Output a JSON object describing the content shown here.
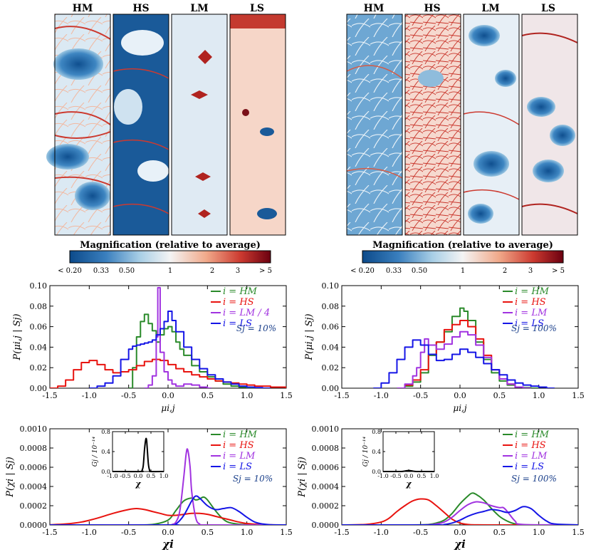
{
  "colors": {
    "HM": "#2a8a2a",
    "HS": "#e8130f",
    "LM": "#a133e0",
    "LS": "#1515e6",
    "annot": "#1a3f8a",
    "black": "#000000"
  },
  "maps": {
    "left": {
      "panels": [
        "HM",
        "HS",
        "LM",
        "LS"
      ],
      "colorbar_title": "Magnification (relative to average)",
      "colorbar_ticks": [
        "< 0.20",
        "0.33",
        "0.50",
        "1",
        "2",
        "3",
        "> 5"
      ]
    },
    "right": {
      "panels": [
        "HM",
        "HS",
        "LM",
        "LS"
      ],
      "colorbar_title": "Magnification (relative to average)",
      "colorbar_ticks": [
        "< 0.20",
        "0.33",
        "0.50",
        "1",
        "2",
        "3",
        "> 5"
      ]
    }
  },
  "chart_data": [
    {
      "id": "mu-left",
      "type": "line",
      "step": true,
      "ylabel": "P(μi,j | Sj)",
      "xlabel": "μi,j",
      "xlim": [
        -1.5,
        1.5
      ],
      "ylim": [
        0,
        0.1
      ],
      "xticks": [
        "-1.5",
        "-1.0",
        "-0.5",
        "0.0",
        "0.5",
        "1.0",
        "1.5"
      ],
      "yticks": [
        "0.00",
        "0.02",
        "0.04",
        "0.06",
        "0.08",
        "0.10"
      ],
      "ytickvals": [
        0,
        0.02,
        0.04,
        0.06,
        0.08,
        0.1
      ],
      "annotation": "Sj = 10%",
      "series": [
        {
          "name": "i = HM",
          "key": "HM",
          "x": [
            -0.5,
            -0.45,
            -0.4,
            -0.35,
            -0.3,
            -0.25,
            -0.2,
            -0.15,
            -0.1,
            -0.05,
            0.0,
            0.05,
            0.1,
            0.15,
            0.2,
            0.3,
            0.4,
            0.5,
            0.6,
            0.7,
            0.8,
            0.9,
            1.0,
            1.1
          ],
          "y": [
            0.0,
            0.02,
            0.05,
            0.065,
            0.072,
            0.063,
            0.056,
            0.045,
            0.052,
            0.058,
            0.06,
            0.055,
            0.045,
            0.038,
            0.032,
            0.022,
            0.016,
            0.011,
            0.007,
            0.004,
            0.002,
            0.001,
            0.0005,
            0.0
          ]
        },
        {
          "name": "i = HS",
          "key": "HS",
          "x": [
            -1.5,
            -1.4,
            -1.3,
            -1.2,
            -1.1,
            -1.0,
            -0.9,
            -0.8,
            -0.7,
            -0.6,
            -0.5,
            -0.4,
            -0.3,
            -0.2,
            -0.1,
            0.0,
            0.1,
            0.2,
            0.3,
            0.4,
            0.5,
            0.6,
            0.7,
            0.8,
            0.9,
            1.0,
            1.1,
            1.2,
            1.3,
            1.4,
            1.5
          ],
          "y": [
            0.0,
            0.002,
            0.008,
            0.018,
            0.025,
            0.027,
            0.023,
            0.018,
            0.015,
            0.016,
            0.018,
            0.022,
            0.026,
            0.028,
            0.027,
            0.023,
            0.019,
            0.016,
            0.013,
            0.011,
            0.009,
            0.007,
            0.006,
            0.005,
            0.004,
            0.003,
            0.002,
            0.002,
            0.001,
            0.001,
            0.0
          ]
        },
        {
          "name": "i = LM / 4",
          "key": "LM",
          "x": [
            -0.3,
            -0.25,
            -0.2,
            -0.15,
            -0.13,
            -0.1,
            -0.05,
            0.0,
            0.05,
            0.1,
            0.2,
            0.3,
            0.4,
            0.5
          ],
          "y": [
            0.0,
            0.003,
            0.012,
            0.05,
            0.098,
            0.035,
            0.016,
            0.008,
            0.004,
            0.002,
            0.004,
            0.003,
            0.001,
            0.0
          ]
        },
        {
          "name": "i = LS",
          "key": "LS",
          "x": [
            -1.0,
            -0.9,
            -0.8,
            -0.7,
            -0.6,
            -0.5,
            -0.45,
            -0.4,
            -0.35,
            -0.3,
            -0.25,
            -0.2,
            -0.15,
            -0.1,
            -0.05,
            0.0,
            0.05,
            0.1,
            0.2,
            0.3,
            0.4,
            0.5,
            0.6,
            0.7,
            0.8,
            0.9,
            1.0,
            1.1,
            1.2
          ],
          "y": [
            0.0,
            0.002,
            0.005,
            0.012,
            0.028,
            0.038,
            0.041,
            0.042,
            0.043,
            0.044,
            0.045,
            0.047,
            0.052,
            0.058,
            0.065,
            0.075,
            0.066,
            0.055,
            0.04,
            0.028,
            0.019,
            0.013,
            0.009,
            0.006,
            0.004,
            0.002,
            0.001,
            0.0005,
            0.0
          ]
        }
      ]
    },
    {
      "id": "mu-right",
      "type": "line",
      "step": true,
      "ylabel": "P(μi,j | Sj)",
      "xlabel": "μi,j",
      "xlim": [
        -1.5,
        1.5
      ],
      "ylim": [
        0,
        0.1
      ],
      "xticks": [
        "-1.5",
        "-1.0",
        "-0.5",
        "0.0",
        "0.5",
        "1.0",
        "1.5"
      ],
      "yticks": [
        "0.00",
        "0.02",
        "0.04",
        "0.06",
        "0.08",
        "0.10"
      ],
      "ytickvals": [
        0,
        0.02,
        0.04,
        0.06,
        0.08,
        0.1
      ],
      "annotation": "Sj = 100%",
      "series": [
        {
          "name": "i = HM",
          "key": "HM",
          "x": [
            -0.8,
            -0.7,
            -0.6,
            -0.5,
            -0.4,
            -0.3,
            -0.2,
            -0.1,
            0.0,
            0.05,
            0.1,
            0.2,
            0.3,
            0.4,
            0.5,
            0.6,
            0.7,
            0.8,
            0.9
          ],
          "y": [
            0.0,
            0.002,
            0.006,
            0.015,
            0.032,
            0.045,
            0.055,
            0.07,
            0.078,
            0.075,
            0.066,
            0.045,
            0.028,
            0.015,
            0.007,
            0.003,
            0.001,
            0.0005,
            0.0
          ]
        },
        {
          "name": "i = HS",
          "key": "HS",
          "x": [
            -0.8,
            -0.7,
            -0.6,
            -0.5,
            -0.4,
            -0.3,
            -0.2,
            -0.1,
            0.0,
            0.1,
            0.2,
            0.3,
            0.4,
            0.5,
            0.6,
            0.7,
            0.8
          ],
          "y": [
            0.0,
            0.003,
            0.008,
            0.018,
            0.033,
            0.045,
            0.057,
            0.062,
            0.066,
            0.06,
            0.048,
            0.032,
            0.018,
            0.009,
            0.004,
            0.001,
            0.0
          ]
        },
        {
          "name": "i = LM",
          "key": "LM",
          "x": [
            -0.8,
            -0.7,
            -0.6,
            -0.55,
            -0.5,
            -0.45,
            -0.4,
            -0.3,
            -0.2,
            -0.1,
            0.0,
            0.1,
            0.2,
            0.3,
            0.4,
            0.5,
            0.6,
            0.7,
            0.8
          ],
          "y": [
            0.0,
            0.004,
            0.012,
            0.02,
            0.035,
            0.048,
            0.042,
            0.038,
            0.043,
            0.05,
            0.055,
            0.052,
            0.042,
            0.03,
            0.018,
            0.009,
            0.004,
            0.001,
            0.0
          ]
        },
        {
          "name": "i = LS",
          "key": "LS",
          "x": [
            -1.1,
            -1.0,
            -0.9,
            -0.8,
            -0.7,
            -0.6,
            -0.5,
            -0.4,
            -0.3,
            -0.2,
            -0.1,
            0.0,
            0.1,
            0.2,
            0.3,
            0.4,
            0.5,
            0.6,
            0.7,
            0.8,
            0.9,
            1.0,
            1.1
          ],
          "y": [
            0.0,
            0.005,
            0.015,
            0.028,
            0.04,
            0.047,
            0.042,
            0.033,
            0.027,
            0.028,
            0.033,
            0.038,
            0.035,
            0.03,
            0.024,
            0.018,
            0.013,
            0.008,
            0.005,
            0.003,
            0.002,
            0.001,
            0.0
          ]
        }
      ]
    },
    {
      "id": "chi-left",
      "type": "line",
      "step": false,
      "ylabel": "P(χi | Sj)",
      "xlabel": "χi",
      "xlim": [
        -1.5,
        1.5
      ],
      "ylim": [
        0,
        0.001
      ],
      "xticks": [
        "-1.5",
        "-1.0",
        "-0.5",
        "0.0",
        "0.5",
        "1.0",
        "1.5"
      ],
      "yticks": [
        "0.0000",
        "0.0002",
        "0.0004",
        "0.0006",
        "0.0008",
        "0.0010"
      ],
      "ytickvals": [
        0,
        0.0002,
        0.0004,
        0.0006,
        0.0008,
        0.001
      ],
      "annotation": "Sj = 10%",
      "series": [
        {
          "name": "i = HM",
          "key": "HM",
          "x": [
            -1.5,
            -1.0,
            -0.5,
            -0.2,
            0.0,
            0.1,
            0.2,
            0.3,
            0.35,
            0.4,
            0.45,
            0.5,
            0.6,
            0.7,
            0.8,
            1.0,
            1.5
          ],
          "y": [
            0,
            0,
            0.0,
            5e-06,
            5e-05,
            0.00015,
            0.00025,
            0.00028,
            0.00026,
            0.00027,
            0.00029,
            0.00026,
            0.00015,
            6e-05,
            2e-05,
            3e-06,
            0
          ]
        },
        {
          "name": "i = HS",
          "key": "HS",
          "x": [
            -1.5,
            -1.3,
            -1.1,
            -0.9,
            -0.7,
            -0.5,
            -0.4,
            -0.3,
            -0.2,
            -0.1,
            0.0,
            0.1,
            0.2,
            0.3,
            0.4,
            0.5,
            0.6,
            0.7,
            0.8,
            0.9,
            1.0,
            1.2,
            1.5
          ],
          "y": [
            2e-06,
            1e-05,
            3e-05,
            7e-05,
            0.00012,
            0.00016,
            0.00017,
            0.00016,
            0.00014,
            0.00012,
            0.0001,
            0.0001,
            0.00011,
            0.00012,
            0.00012,
            0.00011,
            9e-05,
            7e-05,
            5e-05,
            3e-05,
            1.5e-05,
            3e-06,
            0
          ]
        },
        {
          "name": "i = LM",
          "key": "LM",
          "x": [
            -1.5,
            0.0,
            0.05,
            0.1,
            0.15,
            0.2,
            0.23,
            0.25,
            0.28,
            0.3,
            0.35,
            0.4,
            0.5,
            1.5
          ],
          "y": [
            0,
            0,
            5e-06,
            3e-05,
            0.00015,
            0.0005,
            0.00074,
            0.00078,
            0.0006,
            0.00035,
            8e-05,
            1e-05,
            0,
            0
          ]
        },
        {
          "name": "i = LS",
          "key": "LS",
          "x": [
            -1.5,
            0.0,
            0.1,
            0.2,
            0.3,
            0.35,
            0.4,
            0.5,
            0.6,
            0.7,
            0.8,
            0.9,
            1.0,
            1.1,
            1.2,
            1.3,
            1.5
          ],
          "y": [
            0,
            0,
            1e-05,
            0.0001,
            0.00025,
            0.0003,
            0.00028,
            0.0002,
            0.00016,
            0.00017,
            0.00018,
            0.00014,
            8e-05,
            3e-05,
            1e-05,
            2e-06,
            0
          ]
        }
      ],
      "inset": {
        "ylabel": "Gj / 10⁻¹⁴",
        "xlabel": "χ",
        "xlim": [
          -1.0,
          1.0
        ],
        "ylim": [
          0,
          0.8
        ],
        "xticks": [
          "-1.0",
          "-0.5",
          "0.0",
          "0.5",
          "1.0"
        ],
        "yticks": [
          "0.0",
          "0.4",
          "0.8"
        ],
        "ytickvals": [
          0,
          0.4,
          0.8
        ],
        "x": [
          -1.0,
          0.1,
          0.15,
          0.2,
          0.25,
          0.3,
          0.33,
          0.35,
          0.4,
          0.45,
          0.5,
          1.0
        ],
        "y": [
          0,
          0,
          0.02,
          0.12,
          0.45,
          0.65,
          0.63,
          0.5,
          0.15,
          0.02,
          0,
          0
        ]
      }
    },
    {
      "id": "chi-right",
      "type": "line",
      "step": false,
      "ylabel": "P(χi | Sj)",
      "xlabel": "χi",
      "xlim": [
        -1.5,
        1.5
      ],
      "ylim": [
        0,
        0.001
      ],
      "xticks": [
        "-1.5",
        "-1.0",
        "-0.5",
        "0.0",
        "0.5",
        "1.0",
        "1.5"
      ],
      "yticks": [
        "0.0000",
        "0.0002",
        "0.0004",
        "0.0006",
        "0.0008",
        "0.0010"
      ],
      "ytickvals": [
        0,
        0.0002,
        0.0004,
        0.0006,
        0.0008,
        0.001
      ],
      "annotation": "Sj = 100%",
      "series": [
        {
          "name": "i = HM",
          "key": "HM",
          "x": [
            -1.5,
            -0.6,
            -0.4,
            -0.3,
            -0.2,
            -0.1,
            0.0,
            0.1,
            0.15,
            0.2,
            0.3,
            0.4,
            0.5,
            0.6,
            0.7,
            0.8,
            1.0,
            1.5
          ],
          "y": [
            0,
            0,
            5e-06,
            2e-05,
            5e-05,
            0.00012,
            0.00022,
            0.0003,
            0.00033,
            0.00032,
            0.00026,
            0.00017,
            9e-05,
            4e-05,
            1e-05,
            2e-06,
            0,
            0
          ]
        },
        {
          "name": "i = HS",
          "key": "HS",
          "x": [
            -1.5,
            -1.2,
            -1.0,
            -0.9,
            -0.8,
            -0.7,
            -0.6,
            -0.5,
            -0.4,
            -0.3,
            -0.2,
            -0.1,
            0.0,
            0.1,
            0.2,
            0.4,
            1.5
          ],
          "y": [
            0,
            5e-06,
            3e-05,
            7e-05,
            0.00014,
            0.0002,
            0.00025,
            0.00027,
            0.00026,
            0.0002,
            0.00013,
            6e-05,
            2e-05,
            5e-06,
            1e-06,
            0,
            0
          ]
        },
        {
          "name": "i = LM",
          "key": "LM",
          "x": [
            -1.5,
            -0.5,
            -0.3,
            -0.2,
            -0.1,
            0.0,
            0.1,
            0.2,
            0.3,
            0.4,
            0.5,
            0.55,
            0.6,
            0.7,
            0.8,
            1.5
          ],
          "y": [
            0,
            0,
            1e-05,
            3e-05,
            8e-05,
            0.00015,
            0.00021,
            0.00024,
            0.00023,
            0.0002,
            0.00018,
            0.00018,
            0.00014,
            4e-05,
            5e-06,
            0
          ]
        },
        {
          "name": "i = LS",
          "key": "LS",
          "x": [
            -1.5,
            -0.3,
            -0.2,
            -0.1,
            0.0,
            0.1,
            0.2,
            0.3,
            0.4,
            0.5,
            0.6,
            0.7,
            0.8,
            0.9,
            1.0,
            1.1,
            1.2,
            1.5
          ],
          "y": [
            0,
            0,
            5e-06,
            2e-05,
            5e-05,
            9e-05,
            0.00012,
            0.00014,
            0.00016,
            0.00015,
            0.00013,
            0.00015,
            0.00019,
            0.00017,
            0.0001,
            4e-05,
            1e-05,
            0
          ]
        }
      ],
      "inset": {
        "ylabel": "Gj / 10⁻¹⁴",
        "xlabel": "χ",
        "xlim": [
          -1.0,
          1.0
        ],
        "ylim": [
          0,
          0.8
        ],
        "xticks": [
          "-1.0",
          "-0.5",
          "0.0",
          "0.5",
          "1.0"
        ],
        "yticks": [
          "0.0",
          "0.4",
          "0.8"
        ],
        "ytickvals": [
          0,
          0.4,
          0.8
        ],
        "x": [
          -1.0,
          -0.4,
          -0.2,
          -0.1,
          0.0,
          0.1,
          0.2,
          0.4,
          1.0
        ],
        "y": [
          0,
          0,
          0.005,
          0.015,
          0.02,
          0.015,
          0.005,
          0,
          0
        ]
      }
    }
  ]
}
